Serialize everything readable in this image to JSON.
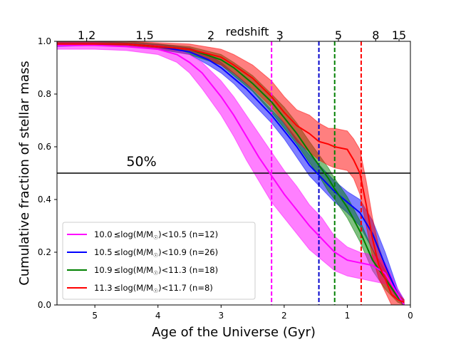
{
  "chart_data": {
    "type": "line",
    "title": "",
    "xlabel": "Age of the Universe (Gyr)",
    "ylabel": "Cumulative fraction of stellar mass",
    "top_axis_label": "redshift",
    "xlim": [
      5.6,
      0.0
    ],
    "ylim": [
      0.0,
      1.0
    ],
    "x_ticks": [
      5,
      4,
      3,
      2,
      1,
      0
    ],
    "x_tick_labels": [
      "5",
      "4",
      "3",
      "2",
      "1",
      "0"
    ],
    "y_ticks": [
      0.0,
      0.2,
      0.4,
      0.6,
      0.8,
      1.0
    ],
    "y_tick_labels": [
      "0.0",
      "0.2",
      "0.4",
      "0.6",
      "0.8",
      "1.0"
    ],
    "redshift_ticks": [
      {
        "label": "1.2",
        "age": 5.13
      },
      {
        "label": "1.5",
        "age": 4.21
      },
      {
        "label": "2",
        "age": 3.16
      },
      {
        "label": "3",
        "age": 2.07
      },
      {
        "label": "5",
        "age": 1.14
      },
      {
        "label": "8",
        "age": 0.55
      },
      {
        "label": "15",
        "age": 0.18
      }
    ],
    "reference_line": {
      "y": 0.5,
      "label": "50%",
      "label_x": 4.5
    },
    "vlines": [
      {
        "x": 2.2,
        "color": "#ff00ff"
      },
      {
        "x": 1.45,
        "color": "#0000cc"
      },
      {
        "x": 1.2,
        "color": "#008000"
      },
      {
        "x": 0.78,
        "color": "#ff0000"
      }
    ],
    "legend_location": "lower-left",
    "series": [
      {
        "name": "10.5≤log(M/M☉)<10.9 (n=26)",
        "label_prefix": "10.5",
        "label_mid": "log(M/M",
        "label_sub": "☉",
        "label_post": ")<10.9 (n=26)",
        "color": "#0000ff",
        "fill": "#0000ff",
        "x": [
          5.6,
          5.0,
          4.5,
          4.0,
          3.5,
          3.2,
          3.0,
          2.8,
          2.6,
          2.4,
          2.2,
          2.0,
          1.8,
          1.6,
          1.4,
          1.2,
          1.0,
          0.8,
          0.6,
          0.4,
          0.2,
          0.1
        ],
        "y": [
          0.99,
          0.99,
          0.99,
          0.98,
          0.96,
          0.93,
          0.9,
          0.86,
          0.82,
          0.77,
          0.72,
          0.66,
          0.6,
          0.53,
          0.48,
          0.43,
          0.39,
          0.35,
          0.27,
          0.15,
          0.04,
          0.0
        ],
        "lower": [
          0.98,
          0.985,
          0.98,
          0.97,
          0.95,
          0.91,
          0.88,
          0.84,
          0.79,
          0.74,
          0.69,
          0.63,
          0.56,
          0.49,
          0.44,
          0.39,
          0.35,
          0.3,
          0.21,
          0.1,
          0.02,
          0.0
        ],
        "upper": [
          1.0,
          1.0,
          0.995,
          0.99,
          0.975,
          0.95,
          0.92,
          0.88,
          0.84,
          0.79,
          0.74,
          0.69,
          0.63,
          0.57,
          0.52,
          0.47,
          0.43,
          0.4,
          0.32,
          0.2,
          0.06,
          0.02
        ]
      },
      {
        "name": "10.9≤log(M/M☉)<11.3 (n=18)",
        "label_prefix": "10.9",
        "label_mid": "log(M/M",
        "label_sub": "☉",
        "label_post": ")<11.3 (n=18)",
        "color": "#008000",
        "fill": "#008000",
        "x": [
          5.6,
          5.0,
          4.5,
          4.0,
          3.5,
          3.0,
          2.8,
          2.5,
          2.2,
          2.0,
          1.8,
          1.6,
          1.45,
          1.3,
          1.2,
          1.0,
          0.8,
          0.6,
          0.4,
          0.2,
          0.1
        ],
        "y": [
          0.99,
          0.99,
          0.99,
          0.98,
          0.97,
          0.93,
          0.9,
          0.84,
          0.77,
          0.71,
          0.65,
          0.58,
          0.53,
          0.48,
          0.44,
          0.37,
          0.28,
          0.17,
          0.1,
          0.03,
          0.0
        ],
        "lower": [
          0.985,
          0.985,
          0.98,
          0.97,
          0.95,
          0.91,
          0.87,
          0.81,
          0.73,
          0.67,
          0.61,
          0.54,
          0.49,
          0.43,
          0.4,
          0.33,
          0.24,
          0.13,
          0.06,
          0.01,
          0.0
        ],
        "upper": [
          1.0,
          1.0,
          1.0,
          0.99,
          0.98,
          0.95,
          0.92,
          0.87,
          0.8,
          0.75,
          0.69,
          0.62,
          0.57,
          0.52,
          0.48,
          0.41,
          0.32,
          0.21,
          0.13,
          0.05,
          0.02
        ]
      },
      {
        "name": "10.0≤log(M/M☉)<10.5 (n=12)",
        "label_prefix": "10.0",
        "label_mid": "log(M/M",
        "label_sub": "☉",
        "label_post": ")<10.5 (n=12)",
        "color": "#ff00ff",
        "fill": "#ff00ff",
        "x": [
          5.6,
          5.0,
          4.5,
          4.0,
          3.7,
          3.5,
          3.3,
          3.0,
          2.8,
          2.6,
          2.4,
          2.2,
          2.0,
          1.8,
          1.6,
          1.4,
          1.2,
          1.0,
          0.8,
          0.6,
          0.4,
          0.2,
          0.1
        ],
        "y": [
          0.985,
          0.985,
          0.98,
          0.97,
          0.95,
          0.92,
          0.88,
          0.79,
          0.72,
          0.64,
          0.56,
          0.49,
          0.42,
          0.36,
          0.3,
          0.25,
          0.2,
          0.17,
          0.16,
          0.15,
          0.12,
          0.04,
          0.0
        ],
        "lower": [
          0.97,
          0.97,
          0.965,
          0.95,
          0.92,
          0.88,
          0.82,
          0.72,
          0.64,
          0.55,
          0.47,
          0.39,
          0.33,
          0.27,
          0.21,
          0.17,
          0.13,
          0.11,
          0.1,
          0.09,
          0.08,
          0.02,
          0.0
        ],
        "upper": [
          0.995,
          0.995,
          0.99,
          0.985,
          0.97,
          0.95,
          0.92,
          0.85,
          0.79,
          0.72,
          0.65,
          0.58,
          0.51,
          0.45,
          0.38,
          0.33,
          0.26,
          0.22,
          0.2,
          0.19,
          0.16,
          0.06,
          0.02
        ]
      },
      {
        "name": "11.3≤log(M/M☉)<11.7 (n=8)",
        "label_prefix": "11.3",
        "label_mid": "log(M/M",
        "label_sub": "☉",
        "label_post": ")<11.7 (n=8)",
        "color": "#ff0000",
        "fill": "#ff0000",
        "x": [
          5.6,
          5.0,
          4.5,
          4.0,
          3.5,
          3.0,
          2.8,
          2.5,
          2.2,
          2.0,
          1.8,
          1.6,
          1.45,
          1.3,
          1.2,
          1.0,
          0.9,
          0.8,
          0.7,
          0.6,
          0.5,
          0.4,
          0.3,
          0.2,
          0.1
        ],
        "y": [
          0.99,
          0.99,
          0.99,
          0.98,
          0.97,
          0.94,
          0.91,
          0.86,
          0.79,
          0.73,
          0.68,
          0.65,
          0.62,
          0.61,
          0.6,
          0.59,
          0.55,
          0.5,
          0.38,
          0.25,
          0.15,
          0.1,
          0.04,
          0.02,
          0.01
        ],
        "lower": [
          0.985,
          0.985,
          0.985,
          0.975,
          0.96,
          0.91,
          0.88,
          0.82,
          0.75,
          0.69,
          0.62,
          0.58,
          0.55,
          0.53,
          0.52,
          0.51,
          0.48,
          0.42,
          0.3,
          0.18,
          0.1,
          0.05,
          0.0,
          0.0,
          0.0
        ],
        "upper": [
          1.0,
          1.0,
          1.0,
          0.995,
          0.99,
          0.97,
          0.95,
          0.91,
          0.85,
          0.79,
          0.74,
          0.72,
          0.69,
          0.67,
          0.67,
          0.66,
          0.63,
          0.59,
          0.47,
          0.33,
          0.22,
          0.15,
          0.08,
          0.04,
          0.02
        ]
      }
    ],
    "legend_order": [
      2,
      0,
      1,
      3
    ]
  }
}
